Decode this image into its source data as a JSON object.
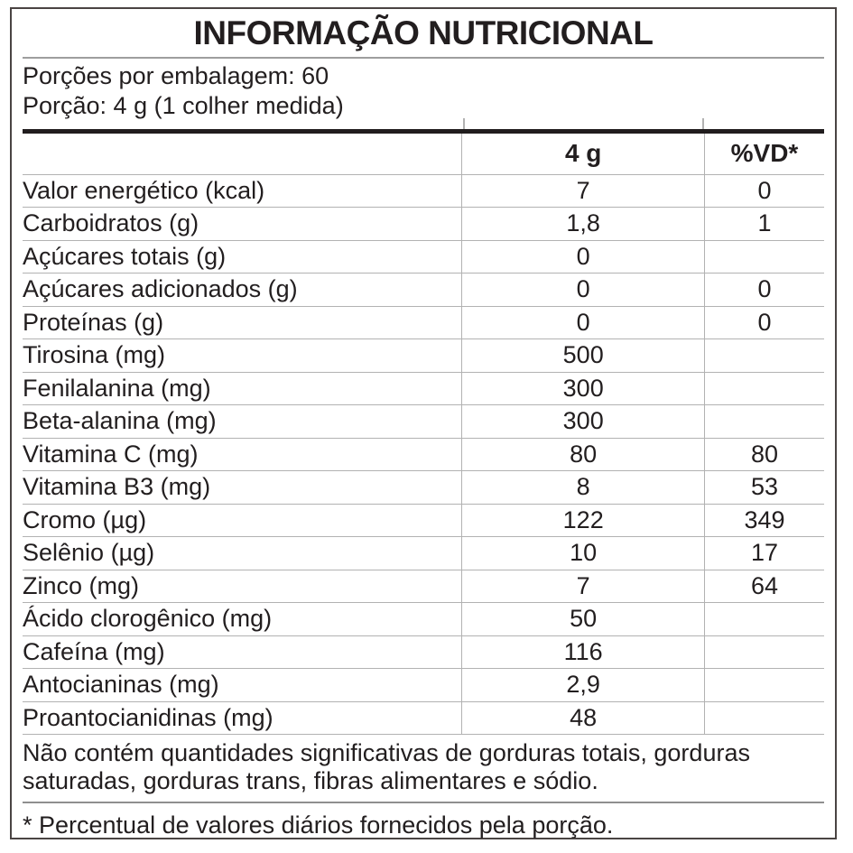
{
  "title": "INFORMAÇÃO NUTRICIONAL",
  "serving_info": {
    "servings_per_package": "Porções por embalagem: 60",
    "serving_size": "Porção: 4 g (1 colher medida)"
  },
  "table": {
    "columns": [
      "",
      "4 g",
      "%VD*"
    ],
    "rows": [
      {
        "name": "Valor energético (kcal)",
        "amount": "7",
        "vd": "0",
        "indent": 0
      },
      {
        "name": "Carboidratos (g)",
        "amount": "1,8",
        "vd": "1",
        "indent": 0
      },
      {
        "name": "Açúcares totais (g)",
        "amount": "0",
        "vd": "",
        "indent": 1
      },
      {
        "name": "Açúcares adicionados (g)",
        "amount": "0",
        "vd": "0",
        "indent": 2
      },
      {
        "name": "Proteínas (g)",
        "amount": "0",
        "vd": "0",
        "indent": 0
      },
      {
        "name": "Tirosina (mg)",
        "amount": "500",
        "vd": "",
        "indent": 1
      },
      {
        "name": "Fenilalanina (mg)",
        "amount": "300",
        "vd": "",
        "indent": 1
      },
      {
        "name": "Beta-alanina (mg)",
        "amount": "300",
        "vd": "",
        "indent": 1
      },
      {
        "name": "Vitamina C (mg)",
        "amount": "80",
        "vd": "80",
        "indent": 0
      },
      {
        "name": "Vitamina B3 (mg)",
        "amount": "8",
        "vd": "53",
        "indent": 0
      },
      {
        "name": "Cromo (µg)",
        "amount": "122",
        "vd": "349",
        "indent": 0
      },
      {
        "name": "Selênio (µg)",
        "amount": "10",
        "vd": "17",
        "indent": 0
      },
      {
        "name": "Zinco (mg)",
        "amount": "7",
        "vd": "64",
        "indent": 0
      },
      {
        "name": "Ácido clorogênico (mg)",
        "amount": "50",
        "vd": "",
        "indent": 0
      },
      {
        "name": "Cafeína (mg)",
        "amount": "116",
        "vd": "",
        "indent": 0
      },
      {
        "name": "Antocianinas (mg)",
        "amount": "2,9",
        "vd": "",
        "indent": 0
      },
      {
        "name": "Proantocianidinas (mg)",
        "amount": "48",
        "vd": "",
        "indent": 0
      }
    ]
  },
  "notes": {
    "no_significant_amounts": "Não contém quantidades significativas de gorduras totais, gorduras saturadas, gorduras trans, fibras alimentares e sódio.",
    "daily_values": "* Percentual de valores diários fornecidos pela porção."
  },
  "colors": {
    "text": "#221e1f",
    "thin_rule": "#b2b2b2",
    "thick_rule": "#211d1e",
    "outer_border": "#4a4443",
    "background": "#ffffff"
  }
}
